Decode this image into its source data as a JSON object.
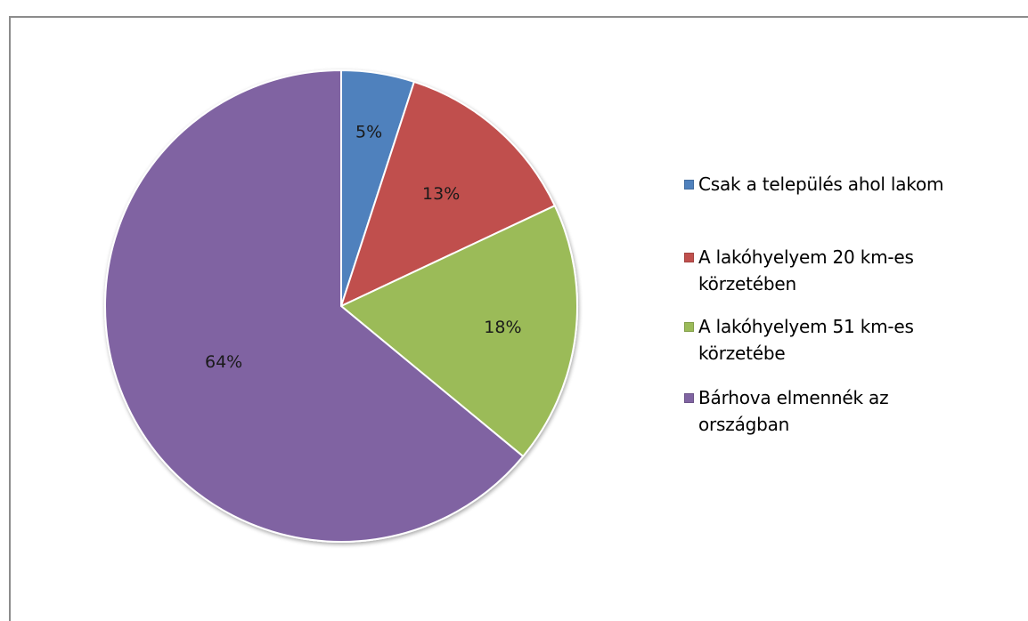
{
  "caption_partial": "",
  "chart_data": {
    "type": "pie",
    "title": "",
    "slices": [
      {
        "name": "Csak a település ahol lakom",
        "value": 5,
        "label": "5%",
        "color": "#4f81bd"
      },
      {
        "name": "A lakóhyelyem 20 km-es körzetében",
        "value": 13,
        "label": "13%",
        "color": "#c0504d"
      },
      {
        "name": "A lakóhyelyem 51 km-es körzetébe",
        "value": 18,
        "label": "18%",
        "color": "#9bbb59"
      },
      {
        "name": "Bárhova elmennék az országban",
        "value": 64,
        "label": "64%",
        "color": "#8064a2"
      }
    ],
    "legend_position": "right",
    "start_angle": "top",
    "direction": "clockwise"
  }
}
